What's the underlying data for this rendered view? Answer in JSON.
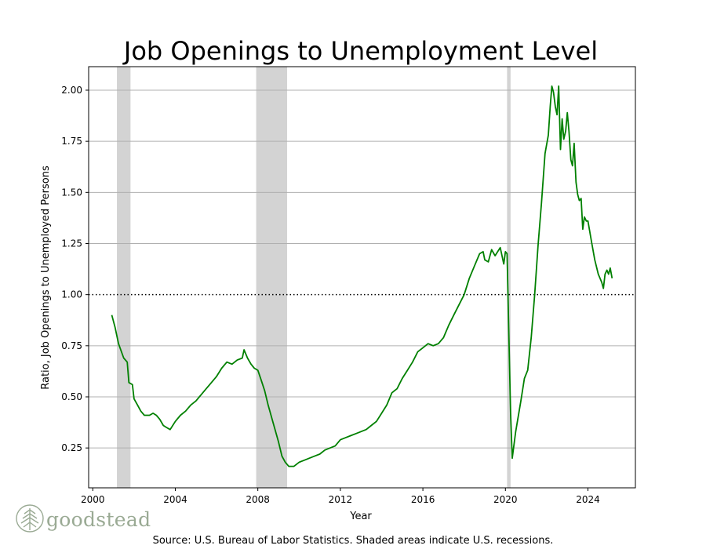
{
  "chart_data": {
    "type": "line",
    "title": "Job Openings to Unemployment Level",
    "xlabel": "Year",
    "ylabel": "Ratio, Job Openings to Unemployed Persons",
    "source_note": "Source: U.S. Bureau of Labor Statistics. Shaded areas indicate U.S. recessions.",
    "xlim": [
      1999.8,
      2026.3
    ],
    "ylim": [
      0.055,
      2.115
    ],
    "x_ticks": [
      2000,
      2004,
      2008,
      2012,
      2016,
      2020,
      2024
    ],
    "x_tick_labels": [
      "2000",
      "2004",
      "2008",
      "2012",
      "2016",
      "2020",
      "2024"
    ],
    "y_ticks": [
      0.25,
      0.5,
      0.75,
      1.0,
      1.25,
      1.5,
      1.75,
      2.0
    ],
    "y_tick_labels": [
      "0.25",
      "0.50",
      "0.75",
      "1.00",
      "1.25",
      "1.50",
      "1.75",
      "2.00"
    ],
    "grid": "horizontal",
    "reference_line": {
      "y": 1.0,
      "style": "dotted",
      "color": "#000000"
    },
    "recessions": [
      {
        "start": 2001.17,
        "end": 2001.83
      },
      {
        "start": 2007.92,
        "end": 2009.42
      },
      {
        "start": 2020.08,
        "end": 2020.25
      }
    ],
    "series": [
      {
        "color": "#008000",
        "points": [
          [
            2000.92,
            0.9
          ],
          [
            2001.08,
            0.84
          ],
          [
            2001.25,
            0.76
          ],
          [
            2001.5,
            0.69
          ],
          [
            2001.67,
            0.67
          ],
          [
            2001.75,
            0.57
          ],
          [
            2001.92,
            0.56
          ],
          [
            2002.0,
            0.49
          ],
          [
            2002.17,
            0.46
          ],
          [
            2002.33,
            0.43
          ],
          [
            2002.5,
            0.41
          ],
          [
            2002.75,
            0.41
          ],
          [
            2002.92,
            0.42
          ],
          [
            2003.08,
            0.41
          ],
          [
            2003.25,
            0.39
          ],
          [
            2003.42,
            0.36
          ],
          [
            2003.58,
            0.35
          ],
          [
            2003.75,
            0.34
          ],
          [
            2004.0,
            0.38
          ],
          [
            2004.25,
            0.41
          ],
          [
            2004.5,
            0.43
          ],
          [
            2004.75,
            0.46
          ],
          [
            2005.0,
            0.48
          ],
          [
            2005.25,
            0.51
          ],
          [
            2005.5,
            0.54
          ],
          [
            2005.75,
            0.57
          ],
          [
            2006.0,
            0.6
          ],
          [
            2006.25,
            0.64
          ],
          [
            2006.5,
            0.67
          ],
          [
            2006.75,
            0.66
          ],
          [
            2007.0,
            0.68
          ],
          [
            2007.25,
            0.69
          ],
          [
            2007.33,
            0.73
          ],
          [
            2007.5,
            0.69
          ],
          [
            2007.67,
            0.66
          ],
          [
            2007.83,
            0.64
          ],
          [
            2008.0,
            0.63
          ],
          [
            2008.17,
            0.58
          ],
          [
            2008.33,
            0.53
          ],
          [
            2008.5,
            0.46
          ],
          [
            2008.75,
            0.37
          ],
          [
            2009.0,
            0.28
          ],
          [
            2009.17,
            0.21
          ],
          [
            2009.33,
            0.18
          ],
          [
            2009.5,
            0.16
          ],
          [
            2009.75,
            0.16
          ],
          [
            2010.0,
            0.18
          ],
          [
            2010.25,
            0.19
          ],
          [
            2010.5,
            0.2
          ],
          [
            2010.75,
            0.21
          ],
          [
            2011.0,
            0.22
          ],
          [
            2011.25,
            0.24
          ],
          [
            2011.5,
            0.25
          ],
          [
            2011.75,
            0.26
          ],
          [
            2012.0,
            0.29
          ],
          [
            2012.25,
            0.3
          ],
          [
            2012.5,
            0.31
          ],
          [
            2012.75,
            0.32
          ],
          [
            2013.0,
            0.33
          ],
          [
            2013.25,
            0.34
          ],
          [
            2013.5,
            0.36
          ],
          [
            2013.75,
            0.38
          ],
          [
            2014.0,
            0.42
          ],
          [
            2014.25,
            0.46
          ],
          [
            2014.5,
            0.52
          ],
          [
            2014.75,
            0.54
          ],
          [
            2015.0,
            0.59
          ],
          [
            2015.25,
            0.63
          ],
          [
            2015.5,
            0.67
          ],
          [
            2015.75,
            0.72
          ],
          [
            2016.0,
            0.74
          ],
          [
            2016.25,
            0.76
          ],
          [
            2016.5,
            0.75
          ],
          [
            2016.75,
            0.76
          ],
          [
            2017.0,
            0.79
          ],
          [
            2017.25,
            0.85
          ],
          [
            2017.5,
            0.9
          ],
          [
            2017.75,
            0.95
          ],
          [
            2018.0,
            1.0
          ],
          [
            2018.25,
            1.08
          ],
          [
            2018.5,
            1.14
          ],
          [
            2018.75,
            1.2
          ],
          [
            2018.92,
            1.21
          ],
          [
            2019.0,
            1.17
          ],
          [
            2019.17,
            1.16
          ],
          [
            2019.33,
            1.22
          ],
          [
            2019.5,
            1.19
          ],
          [
            2019.75,
            1.23
          ],
          [
            2019.92,
            1.15
          ],
          [
            2020.0,
            1.21
          ],
          [
            2020.08,
            1.2
          ],
          [
            2020.25,
            0.42
          ],
          [
            2020.33,
            0.2
          ],
          [
            2020.5,
            0.33
          ],
          [
            2020.75,
            0.48
          ],
          [
            2020.92,
            0.59
          ],
          [
            2021.08,
            0.63
          ],
          [
            2021.25,
            0.79
          ],
          [
            2021.42,
            1.0
          ],
          [
            2021.58,
            1.24
          ],
          [
            2021.75,
            1.45
          ],
          [
            2021.92,
            1.69
          ],
          [
            2022.08,
            1.78
          ],
          [
            2022.17,
            1.92
          ],
          [
            2022.25,
            2.02
          ],
          [
            2022.33,
            1.99
          ],
          [
            2022.42,
            1.92
          ],
          [
            2022.5,
            1.88
          ],
          [
            2022.58,
            2.02
          ],
          [
            2022.67,
            1.71
          ],
          [
            2022.75,
            1.86
          ],
          [
            2022.83,
            1.76
          ],
          [
            2022.92,
            1.8
          ],
          [
            2023.0,
            1.89
          ],
          [
            2023.08,
            1.8
          ],
          [
            2023.17,
            1.66
          ],
          [
            2023.25,
            1.63
          ],
          [
            2023.33,
            1.74
          ],
          [
            2023.42,
            1.55
          ],
          [
            2023.5,
            1.49
          ],
          [
            2023.58,
            1.46
          ],
          [
            2023.67,
            1.47
          ],
          [
            2023.75,
            1.32
          ],
          [
            2023.83,
            1.38
          ],
          [
            2023.92,
            1.36
          ],
          [
            2024.0,
            1.36
          ],
          [
            2024.17,
            1.26
          ],
          [
            2024.33,
            1.17
          ],
          [
            2024.5,
            1.1
          ],
          [
            2024.67,
            1.06
          ],
          [
            2024.75,
            1.03
          ],
          [
            2024.83,
            1.1
          ],
          [
            2024.92,
            1.12
          ],
          [
            2025.0,
            1.1
          ],
          [
            2025.08,
            1.13
          ],
          [
            2025.17,
            1.08
          ]
        ]
      }
    ]
  },
  "logo": {
    "text": "goodstead",
    "color": "#9aaa94"
  }
}
